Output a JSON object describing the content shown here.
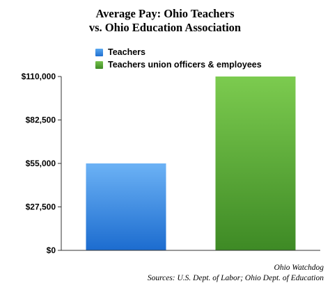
{
  "chart_data": {
    "type": "bar",
    "title_lines": [
      "Average Pay: Ohio Teachers",
      "vs. Ohio Education Association"
    ],
    "categories": [
      "Teachers",
      "Teachers union officers & employees"
    ],
    "values": [
      55000,
      110000
    ],
    "colors": [
      "#2a7de1",
      "#4a9a2c"
    ],
    "ylim": [
      0,
      110000
    ],
    "yticks": [
      0,
      27500,
      55000,
      82500,
      110000
    ],
    "ytick_labels": [
      "$0",
      "$27,500",
      "$55,000",
      "$82,500",
      "$110,000"
    ],
    "xlabel": "",
    "ylabel": "",
    "grid": false,
    "legend_position": "top-center"
  },
  "source": {
    "line1": "Ohio Watchdog",
    "line2": "Sources: U.S. Dept. of Labor; Ohio Dept. of Education"
  }
}
